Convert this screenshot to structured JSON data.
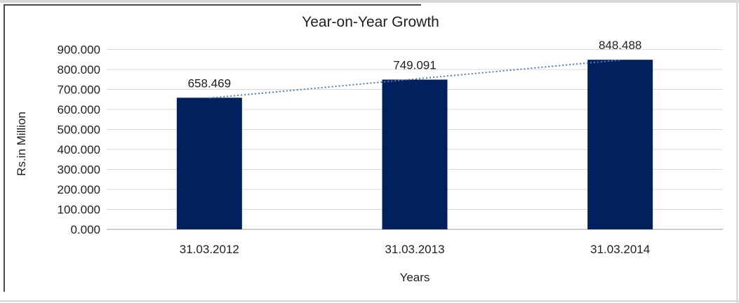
{
  "chart_data": {
    "type": "bar",
    "title": "Year-on-Year Growth",
    "xlabel": "Years",
    "ylabel": "Rs.in Million",
    "categories": [
      "31.03.2012",
      "31.03.2013",
      "31.03.2014"
    ],
    "values": [
      658.469,
      749.091,
      848.488
    ],
    "data_labels": [
      "658.469",
      "749.091",
      "848.488"
    ],
    "ylim": [
      0,
      900
    ],
    "y_ticks": [
      0,
      100,
      200,
      300,
      400,
      500,
      600,
      700,
      800,
      900
    ],
    "y_tick_labels": [
      "0.000",
      "100.000",
      "200.000",
      "300.000",
      "400.000",
      "500.000",
      "600.000",
      "700.000",
      "800.000",
      "900.000"
    ],
    "grid": true,
    "legend": "none",
    "bar_color": "#01215e",
    "gridline_color": "#d9d9d9",
    "axis_line_color": "#bfbfbf",
    "text_color": "#1f1f1f",
    "trendline": {
      "type": "linear",
      "style": "dotted",
      "color": "#4a7ebb"
    }
  },
  "frame": {
    "outer_edge_color": "#d8d8d8",
    "border_color": "#4a4a4a",
    "background": "#ffffff"
  }
}
